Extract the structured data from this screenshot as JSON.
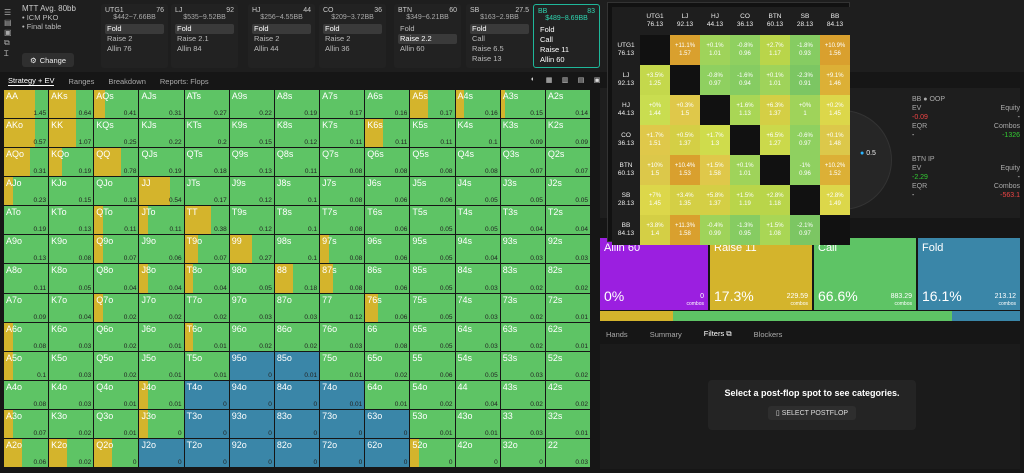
{
  "left_panel": {
    "title": "MTT Avg. 80bb",
    "items": [
      "ICM PKO",
      "Final table"
    ],
    "change_label": "Change"
  },
  "positions": [
    {
      "name": "UTG1",
      "bb": "76",
      "stack": "$442~7.66BB",
      "actions": [
        "Fold",
        "Raise 2",
        "Allin 76"
      ],
      "selected": 0
    },
    {
      "name": "LJ",
      "bb": "92",
      "stack": "$535~9.52BB",
      "actions": [
        "Fold",
        "Raise 2.1",
        "Allin 84"
      ],
      "selected": 0
    },
    {
      "name": "HJ",
      "bb": "44",
      "stack": "$256~4.55BB",
      "actions": [
        "Fold",
        "Raise 2",
        "Allin 44"
      ],
      "selected": 0
    },
    {
      "name": "CO",
      "bb": "36",
      "stack": "$209~3.72BB",
      "actions": [
        "Fold",
        "Raise 2",
        "Allin 36"
      ],
      "selected": 0
    },
    {
      "name": "BTN",
      "bb": "60",
      "stack": "$349~6.21BB",
      "actions": [
        "Fold",
        "Raise 2.2",
        "Allin 60"
      ],
      "selected": 1
    },
    {
      "name": "SB",
      "bb": "27.5",
      "stack": "$163~2.9BB",
      "actions": [
        "Fold",
        "Call",
        "Raise 6.5",
        "Raise 13"
      ],
      "selected": 0
    },
    {
      "name": "BB",
      "bb": "83",
      "stack": "$489~8.69BB",
      "actions": [
        "Fold",
        "Call",
        "Raise 11",
        "Allin 60"
      ],
      "selected": -1
    }
  ],
  "tabs": [
    "Strategy + EV",
    "Ranges",
    "Breakdown",
    "Reports: Flops"
  ],
  "matrix": {
    "rows": [
      [
        [
          "AA",
          "1.45",
          "y70"
        ],
        [
          "AKs",
          "0.64",
          "y60"
        ],
        [
          "AQs",
          "0.41",
          "y25"
        ],
        [
          "AJs",
          "0.31",
          ""
        ],
        [
          "ATs",
          "0.27",
          ""
        ],
        [
          "A9s",
          "0.22",
          ""
        ],
        [
          "A8s",
          "0.19",
          ""
        ],
        [
          "A7s",
          "0.17",
          ""
        ],
        [
          "A6s",
          "0.16",
          ""
        ],
        [
          "A5s",
          "0.17",
          "y40"
        ],
        [
          "A4s",
          "0.16",
          "y20"
        ],
        [
          "A3s",
          "0.15",
          "y10"
        ],
        [
          "A2s",
          "0.14",
          ""
        ]
      ],
      [
        [
          "AKo",
          "0.57",
          "y70"
        ],
        [
          "KK",
          "1.07",
          "y60"
        ],
        [
          "KQs",
          "0.25",
          ""
        ],
        [
          "KJs",
          "0.22",
          ""
        ],
        [
          "KTs",
          "0.2",
          ""
        ],
        [
          "K9s",
          "0.15",
          ""
        ],
        [
          "K8s",
          "0.12",
          ""
        ],
        [
          "K7s",
          "0.11",
          ""
        ],
        [
          "K6s",
          "0.11",
          "y40"
        ],
        [
          "K5s",
          "0.11",
          ""
        ],
        [
          "K4s",
          "0.1",
          ""
        ],
        [
          "K3s",
          "0.09",
          ""
        ],
        [
          "K2s",
          "0.09",
          ""
        ]
      ],
      [
        [
          "AQo",
          "0.31",
          "y60"
        ],
        [
          "KQo",
          "0.19",
          "y30"
        ],
        [
          "QQ",
          "0.78",
          "y60"
        ],
        [
          "QJs",
          "0.19",
          ""
        ],
        [
          "QTs",
          "0.18",
          ""
        ],
        [
          "Q9s",
          "0.13",
          ""
        ],
        [
          "Q8s",
          "0.11",
          ""
        ],
        [
          "Q7s",
          "0.08",
          ""
        ],
        [
          "Q6s",
          "0.08",
          ""
        ],
        [
          "Q5s",
          "0.08",
          ""
        ],
        [
          "Q4s",
          "0.08",
          ""
        ],
        [
          "Q3s",
          "0.07",
          ""
        ],
        [
          "Q2s",
          "0.07",
          ""
        ]
      ],
      [
        [
          "AJo",
          "0.23",
          "y20"
        ],
        [
          "KJo",
          "0.15",
          ""
        ],
        [
          "QJo",
          "0.13",
          ""
        ],
        [
          "JJ",
          "0.54",
          "y70"
        ],
        [
          "JTs",
          "0.17",
          ""
        ],
        [
          "J9s",
          "0.12",
          ""
        ],
        [
          "J8s",
          "0.1",
          ""
        ],
        [
          "J7s",
          "0.08",
          ""
        ],
        [
          "J6s",
          "0.06",
          ""
        ],
        [
          "J5s",
          "0.06",
          ""
        ],
        [
          "J4s",
          "0.05",
          ""
        ],
        [
          "J3s",
          "0.05",
          ""
        ],
        [
          "J2s",
          "0.05",
          ""
        ]
      ],
      [
        [
          "ATo",
          "0.19",
          ""
        ],
        [
          "KTo",
          "0.13",
          ""
        ],
        [
          "QTo",
          "0.11",
          "y20"
        ],
        [
          "JTo",
          "0.11",
          "y20"
        ],
        [
          "TT",
          "0.38",
          "y60"
        ],
        [
          "T9s",
          "0.12",
          ""
        ],
        [
          "T8s",
          "0.1",
          ""
        ],
        [
          "T7s",
          "0.08",
          ""
        ],
        [
          "T6s",
          "0.06",
          ""
        ],
        [
          "T5s",
          "0.05",
          ""
        ],
        [
          "T4s",
          "0.05",
          ""
        ],
        [
          "T3s",
          "0.04",
          ""
        ],
        [
          "T2s",
          "0.04",
          ""
        ]
      ],
      [
        [
          "A9o",
          "0.13",
          ""
        ],
        [
          "K9o",
          "0.08",
          ""
        ],
        [
          "Q9o",
          "0.07",
          "y20"
        ],
        [
          "J9o",
          "0.06",
          ""
        ],
        [
          "T9o",
          "0.07",
          "y30"
        ],
        [
          "99",
          "0.27",
          "y50"
        ],
        [
          "98s",
          "0.1",
          ""
        ],
        [
          "97s",
          "0.08",
          "y20"
        ],
        [
          "96s",
          "0.06",
          ""
        ],
        [
          "95s",
          "0.05",
          ""
        ],
        [
          "94s",
          "0.04",
          ""
        ],
        [
          "93s",
          "0.03",
          ""
        ],
        [
          "92s",
          "0.03",
          ""
        ]
      ],
      [
        [
          "A8o",
          "0.11",
          ""
        ],
        [
          "K8o",
          "0.05",
          ""
        ],
        [
          "Q8o",
          "0.04",
          ""
        ],
        [
          "J8o",
          "0.04",
          "y20"
        ],
        [
          "T8o",
          "0.04",
          "y20"
        ],
        [
          "98o",
          "0.05",
          ""
        ],
        [
          "88",
          "0.18",
          "y40"
        ],
        [
          "87s",
          "0.08",
          "y30"
        ],
        [
          "86s",
          "0.06",
          ""
        ],
        [
          "85s",
          "0.05",
          ""
        ],
        [
          "84s",
          "0.03",
          ""
        ],
        [
          "83s",
          "0.02",
          ""
        ],
        [
          "82s",
          "0.02",
          ""
        ]
      ],
      [
        [
          "A7o",
          "0.09",
          ""
        ],
        [
          "K7o",
          "0.04",
          ""
        ],
        [
          "Q7o",
          "0.02",
          "y20"
        ],
        [
          "J7o",
          "0.02",
          ""
        ],
        [
          "T7o",
          "0.02",
          ""
        ],
        [
          "97o",
          "0.03",
          ""
        ],
        [
          "87o",
          "0.03",
          ""
        ],
        [
          "77",
          "0.12",
          ""
        ],
        [
          "76s",
          "0.06",
          "y30"
        ],
        [
          "75s",
          "0.05",
          ""
        ],
        [
          "74s",
          "0.03",
          ""
        ],
        [
          "73s",
          "0.02",
          ""
        ],
        [
          "72s",
          "0.01",
          ""
        ]
      ],
      [
        [
          "A6o",
          "0.08",
          "y20"
        ],
        [
          "K6o",
          "0.03",
          ""
        ],
        [
          "Q6o",
          "0.02",
          ""
        ],
        [
          "J6o",
          "0.01",
          ""
        ],
        [
          "T6o",
          "0.01",
          "y20"
        ],
        [
          "96o",
          "0.02",
          ""
        ],
        [
          "86o",
          "0.02",
          ""
        ],
        [
          "76o",
          "0.03",
          ""
        ],
        [
          "66",
          "0.08",
          ""
        ],
        [
          "65s",
          "0.05",
          ""
        ],
        [
          "64s",
          "0.03",
          ""
        ],
        [
          "63s",
          "0.02",
          ""
        ],
        [
          "62s",
          "0.01",
          ""
        ]
      ],
      [
        [
          "A5o",
          "0.1",
          "y20"
        ],
        [
          "K5o",
          "0.03",
          ""
        ],
        [
          "Q5o",
          "0.02",
          ""
        ],
        [
          "J5o",
          "0.01",
          ""
        ],
        [
          "T5o",
          "0.01",
          ""
        ],
        [
          "95o",
          "0",
          "b"
        ],
        [
          "85o",
          "0.01",
          "b"
        ],
        [
          "75o",
          "0.01",
          ""
        ],
        [
          "65o",
          "0.02",
          ""
        ],
        [
          "55",
          "0.06",
          ""
        ],
        [
          "54s",
          "0.05",
          ""
        ],
        [
          "53s",
          "0.03",
          ""
        ],
        [
          "52s",
          "0.02",
          ""
        ]
      ],
      [
        [
          "A4o",
          "0.08",
          ""
        ],
        [
          "K4o",
          "0.03",
          ""
        ],
        [
          "Q4o",
          "0.01",
          ""
        ],
        [
          "J4o",
          "0.01",
          "y20"
        ],
        [
          "T4o",
          "0",
          "b"
        ],
        [
          "94o",
          "0",
          "b"
        ],
        [
          "84o",
          "0",
          "b"
        ],
        [
          "74o",
          "0.01",
          "b"
        ],
        [
          "64o",
          "0.01",
          ""
        ],
        [
          "54o",
          "0.02",
          ""
        ],
        [
          "44",
          "0.04",
          ""
        ],
        [
          "43s",
          "0.02",
          ""
        ],
        [
          "42s",
          "0.02",
          ""
        ]
      ],
      [
        [
          "A3o",
          "0.07",
          "y20"
        ],
        [
          "K3o",
          "0.02",
          ""
        ],
        [
          "Q3o",
          "0.01",
          ""
        ],
        [
          "J3o",
          "0",
          "y20"
        ],
        [
          "T3o",
          "0",
          "b"
        ],
        [
          "93o",
          "0",
          "b"
        ],
        [
          "83o",
          "0",
          "b"
        ],
        [
          "73o",
          "0",
          "b"
        ],
        [
          "63o",
          "0",
          "b"
        ],
        [
          "53o",
          "0.01",
          ""
        ],
        [
          "43o",
          "0.01",
          ""
        ],
        [
          "33",
          "0.03",
          ""
        ],
        [
          "32s",
          "0.01",
          ""
        ]
      ],
      [
        [
          "A2o",
          "0.06",
          "y40"
        ],
        [
          "K2o",
          "0.02",
          "y40"
        ],
        [
          "Q2o",
          "0",
          "y40"
        ],
        [
          "J2o",
          "0",
          "b"
        ],
        [
          "T2o",
          "0",
          "b"
        ],
        [
          "92o",
          "0",
          "b"
        ],
        [
          "82o",
          "0",
          "b"
        ],
        [
          "72o",
          "0",
          "b"
        ],
        [
          "62o",
          "0",
          "b"
        ],
        [
          "52o",
          "0",
          "y20"
        ],
        [
          "42o",
          "0",
          ""
        ],
        [
          "32o",
          "0",
          ""
        ],
        [
          "22",
          "0.03",
          ""
        ]
      ]
    ]
  },
  "overlay": {
    "cols": [
      [
        "UTG1",
        "76.13"
      ],
      [
        "LJ",
        "92.13"
      ],
      [
        "HJ",
        "44.13"
      ],
      [
        "CO",
        "36.13"
      ],
      [
        "BTN",
        "60.13"
      ],
      [
        "SB",
        "28.13"
      ],
      [
        "BB",
        "84.13"
      ]
    ],
    "rows": [
      {
        "pos": "UTG1",
        "stack": "76.13",
        "cells": [
          null,
          [
            "+11.1%",
            "1.57",
            "#d9a02e"
          ],
          [
            "+0.1%",
            "1.01",
            "#9fd35a"
          ],
          [
            "-0.8%",
            "0.96",
            "#8fd060"
          ],
          [
            "+2.7%",
            "1.17",
            "#b9d54a"
          ],
          [
            "-1.8%",
            "0.93",
            "#86cc62"
          ],
          [
            "+10.9%",
            "1.56",
            "#d9a02e"
          ]
        ]
      },
      {
        "pos": "LJ",
        "stack": "92.13",
        "cells": [
          [
            "+3.5%",
            "1.25",
            "#c4d84c"
          ],
          null,
          [
            "-0.8%",
            "0.97",
            "#8fd060"
          ],
          [
            "-1.6%",
            "0.94",
            "#86cc62"
          ],
          [
            "+0.1%",
            "1.01",
            "#9fd35a"
          ],
          [
            "-2.3%",
            "0.91",
            "#7cc663"
          ],
          [
            "+9.1%",
            "1.46",
            "#dcb036"
          ]
        ]
      },
      {
        "pos": "HJ",
        "stack": "44.13",
        "cells": [
          [
            "+0%",
            "1.44",
            "#c9dd50"
          ],
          [
            "+0.3%",
            "1.5",
            "#dfc84a"
          ],
          null,
          [
            "+1.6%",
            "1.13",
            "#a9d655"
          ],
          [
            "+6.3%",
            "1.37",
            "#d4cf45"
          ],
          [
            "+0%",
            "1",
            "#9fd35a"
          ],
          [
            "+0.2%",
            "1.45",
            "#dcd74a"
          ]
        ]
      },
      {
        "pos": "CO",
        "stack": "36.13",
        "cells": [
          [
            "+1.7%",
            "1.51",
            "#dfc84a"
          ],
          [
            "+0.5%",
            "1.37",
            "#d4cf45"
          ],
          [
            "+1.7%",
            "1.3",
            "#cfdc4c"
          ],
          null,
          [
            "+6.5%",
            "1.27",
            "#cbd94b"
          ],
          [
            "-0.6%",
            "0.97",
            "#8fd060"
          ],
          [
            "+0.1%",
            "1.48",
            "#dcc84a"
          ]
        ]
      },
      {
        "pos": "BTN",
        "stack": "60.13",
        "cells": [
          [
            "+10%",
            "1.5",
            "#dcc84a"
          ],
          [
            "+10.4%",
            "1.53",
            "#d9a02e"
          ],
          [
            "+1.5%",
            "1.58",
            "#dfc84a"
          ],
          [
            "+0.1%",
            "1.01",
            "#9fd35a"
          ],
          null,
          [
            "-1%",
            "0.96",
            "#8fd060"
          ],
          [
            "+10.2%",
            "1.52",
            "#dcb036"
          ]
        ]
      },
      {
        "pos": "SB",
        "stack": "28.13",
        "cells": [
          [
            "+7%",
            "1.45",
            "#dcd74a"
          ],
          [
            "+3.4%",
            "1.35",
            "#d4cf45"
          ],
          [
            "+5.8%",
            "1.37",
            "#d4cf45"
          ],
          [
            "+1.5%",
            "1.19",
            "#b9d54a"
          ],
          [
            "+2.8%",
            "1.18",
            "#b9d54a"
          ],
          null,
          [
            "+2.8%",
            "1.49",
            "#dcd74a"
          ]
        ]
      },
      {
        "pos": "BB",
        "stack": "84.13",
        "cells": [
          [
            "+3.8%",
            "1.4",
            "#d4cf45"
          ],
          [
            "+11.3%",
            "1.58",
            "#d9a02e"
          ],
          [
            "-0.4%",
            "0.99",
            "#9fd35a"
          ],
          [
            "-1.3%",
            "0.95",
            "#86cc62"
          ],
          [
            "+1.5%",
            "1.08",
            "#a9d655"
          ],
          [
            "-2.1%",
            "0.97",
            "#7cc663"
          ],
          null
        ]
      }
    ]
  },
  "seats": {
    "bb": {
      "label": "BB ● OOP",
      "ev_k": "EV",
      "ev": "-0.09",
      "eq_k": "Equity",
      "eq": "-",
      "eqr_k": "EQR",
      "eqr": "-",
      "cmb_k": "Combos",
      "cmb": "-1326"
    },
    "btn": {
      "label": "BTN IP",
      "ev_k": "EV",
      "ev": "-2.29",
      "eq_k": "Equity",
      "eq": "-",
      "eqr_k": "EQR",
      "eqr": "-",
      "cmb_k": "Combos",
      "cmb": "-563.1"
    },
    "pot": "0.5"
  },
  "actions": [
    {
      "label": "Allin 60",
      "pct": "0%",
      "combos": "0",
      "cmb_label": "combos",
      "color": "#9b1fe0",
      "w": 108
    },
    {
      "label": "Raise 11",
      "pct": "17.3%",
      "combos": "229.59",
      "cmb_label": "combos",
      "color": "#d4b42c",
      "w": 102
    },
    {
      "label": "Call",
      "pct": "66.6%",
      "combos": "883.29",
      "cmb_label": "combos",
      "color": "#5ec465",
      "w": 102
    },
    {
      "label": "Fold",
      "pct": "16.1%",
      "combos": "213.12",
      "cmb_label": "combos",
      "color": "#3a86a8",
      "w": 102
    }
  ],
  "subtabs": [
    "Hands",
    "Summary",
    "Filters",
    "Blockers"
  ],
  "empty": {
    "message": "Select a post-flop spot to see categories.",
    "button": "SELECT POSTFLOP"
  },
  "colors": {
    "call": "#5ec465",
    "raise": "#d4b42c",
    "fold": "#3a86a8",
    "allin": "#9b1fe0"
  }
}
